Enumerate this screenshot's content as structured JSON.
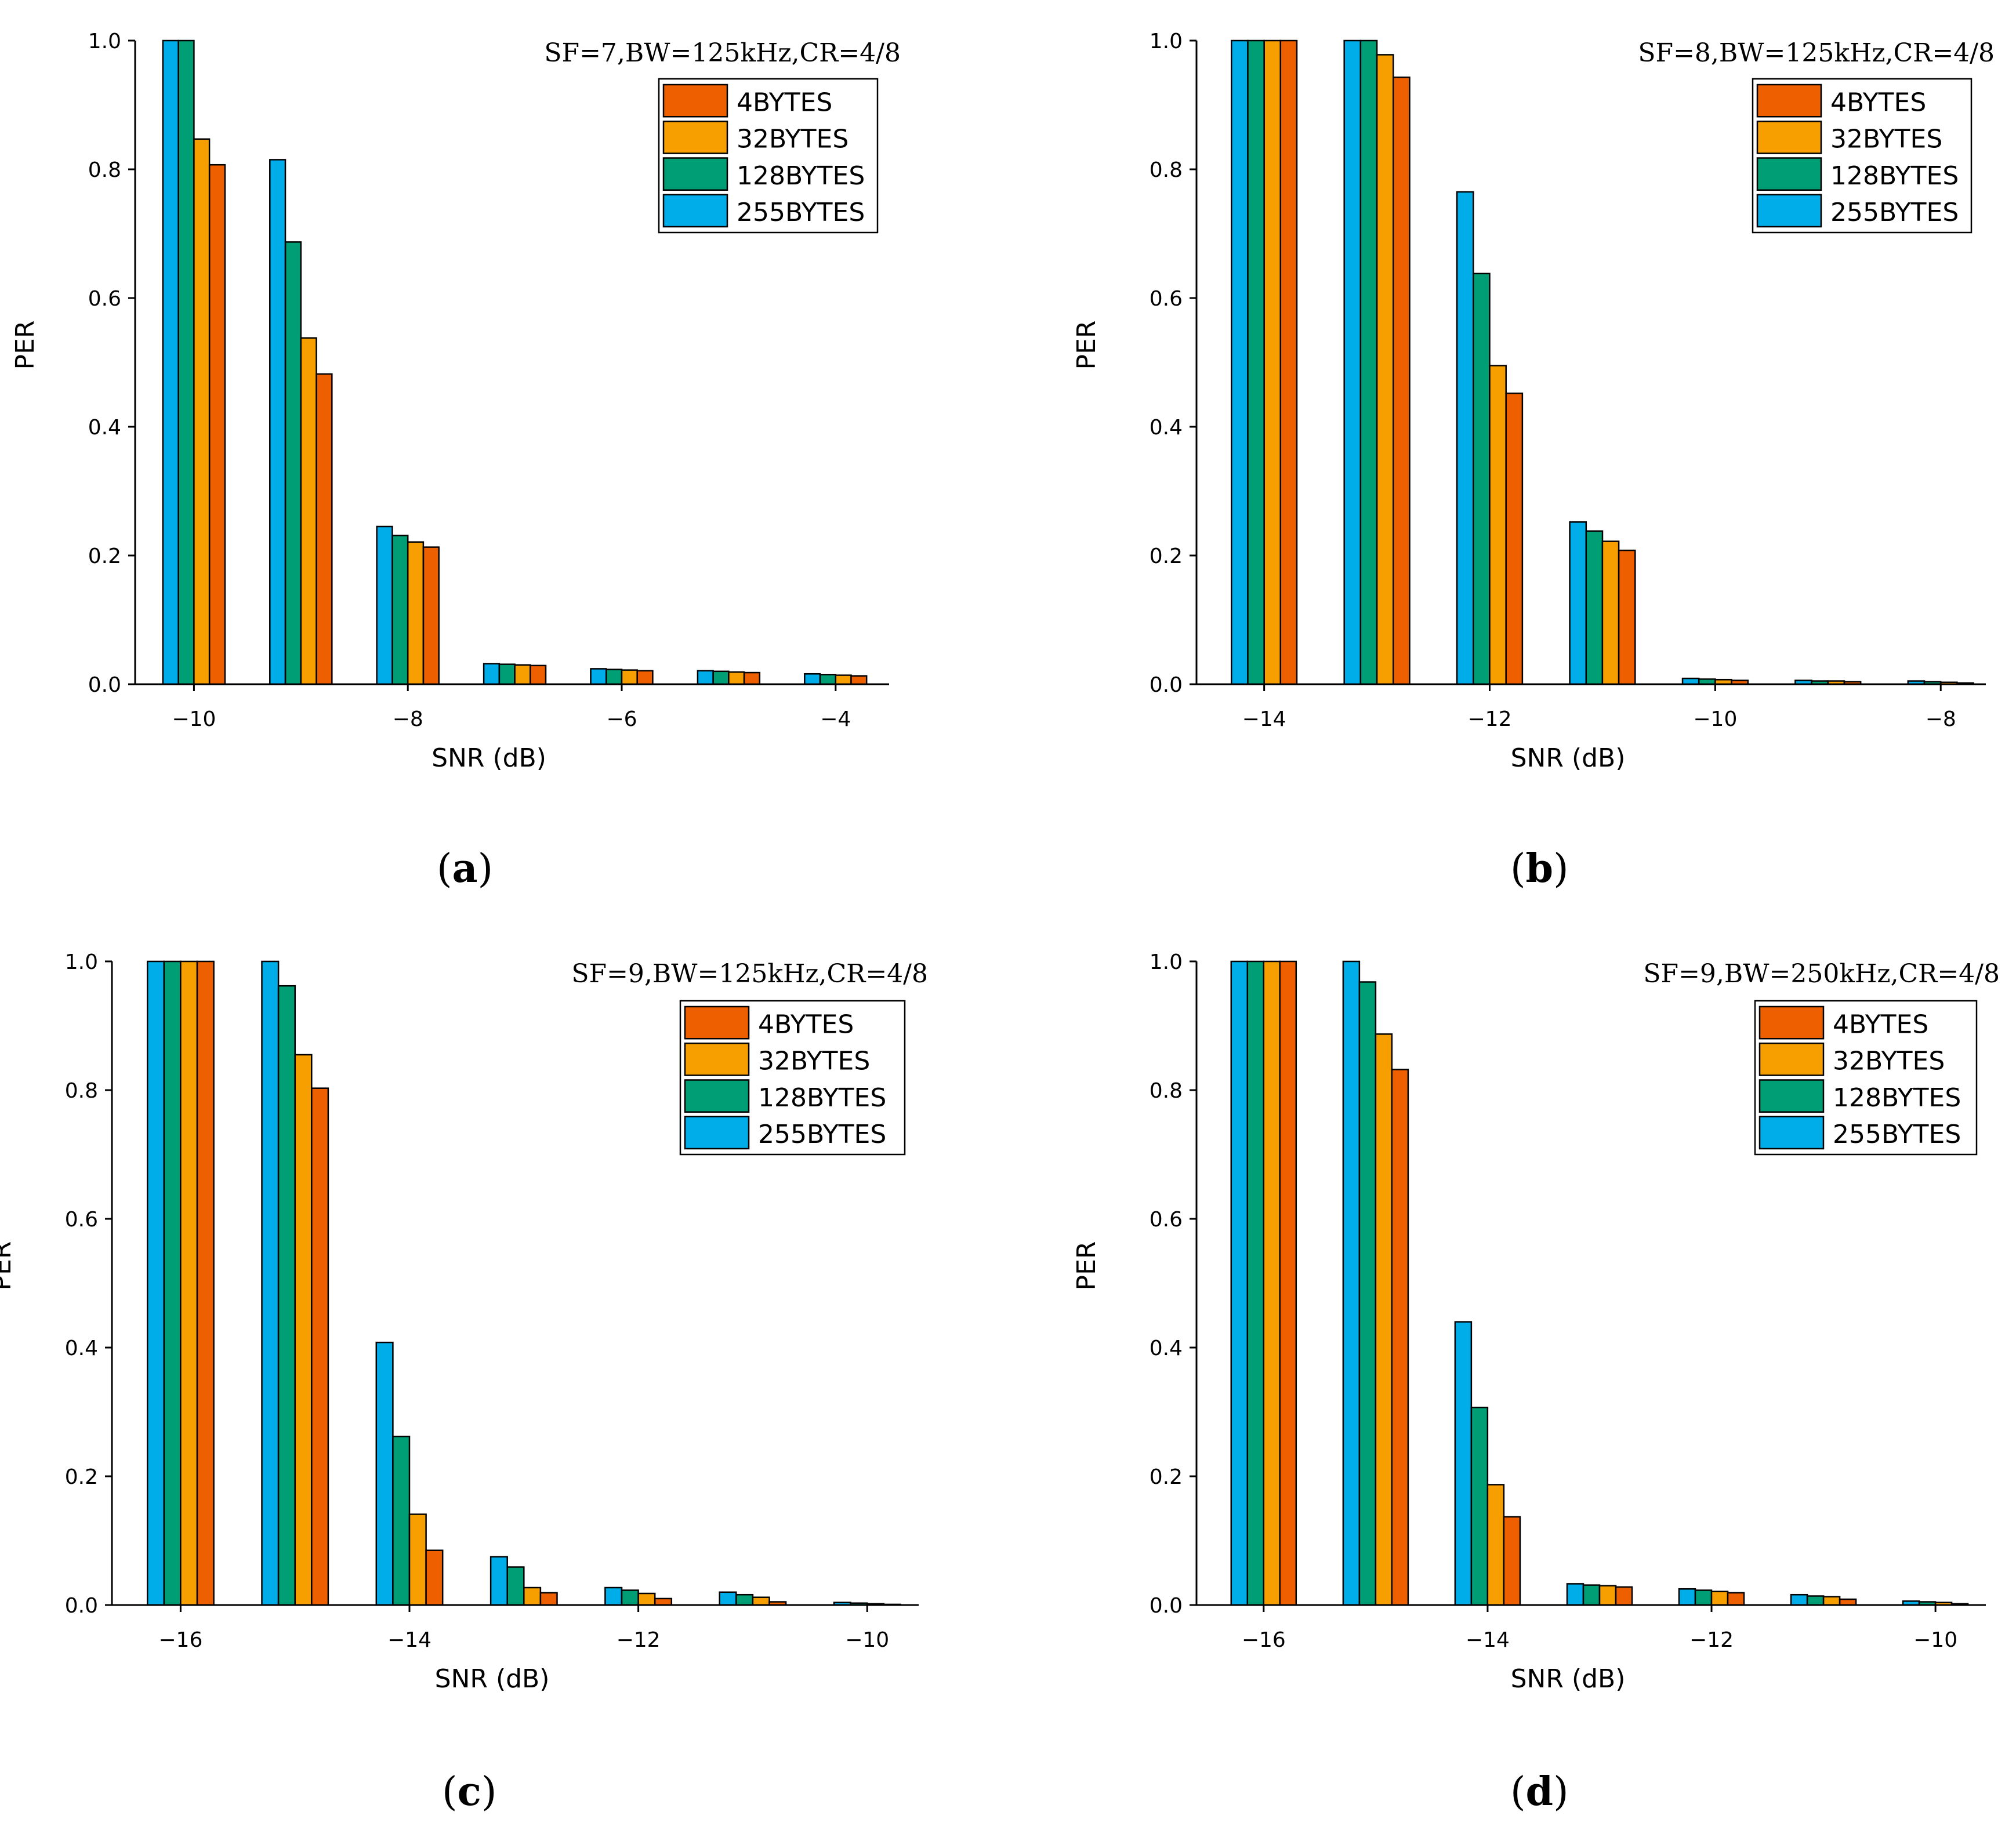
{
  "chart_data": [
    {
      "type": "bar",
      "panel": "a",
      "caption_open": "(",
      "caption_letter": "a",
      "caption_close": ")",
      "title": "SF=7,BW=125kHz,CR=4/8",
      "xlabel": "SNR (dB)",
      "ylabel": "PER",
      "ylim": [
        0,
        1.0
      ],
      "yticks": [
        "0.0",
        "0.2",
        "0.4",
        "0.6",
        "0.8",
        "1.0"
      ],
      "xticks": [
        "−10",
        "−8",
        "−6",
        "−4"
      ],
      "xtick_values": [
        -10,
        -8,
        -6,
        -4
      ],
      "categories": [
        -10,
        -9,
        -8,
        -7,
        -6,
        -5,
        -4
      ],
      "legend": [
        "4BYTES",
        "32BYTES",
        "128BYTES",
        "255BYTES"
      ],
      "series": [
        {
          "name": "255BYTES",
          "color": "#00ade9",
          "values": [
            1.0,
            0.815,
            0.245,
            0.032,
            0.024,
            0.021,
            0.016
          ]
        },
        {
          "name": "128BYTES",
          "color": "#009e74",
          "values": [
            1.0,
            0.687,
            0.231,
            0.031,
            0.023,
            0.02,
            0.015
          ]
        },
        {
          "name": "32BYTES",
          "color": "#f79f00",
          "values": [
            0.847,
            0.538,
            0.221,
            0.03,
            0.022,
            0.019,
            0.014
          ]
        },
        {
          "name": "4BYTES",
          "color": "#ee5f00",
          "values": [
            0.807,
            0.482,
            0.213,
            0.029,
            0.021,
            0.018,
            0.013
          ]
        }
      ]
    },
    {
      "type": "bar",
      "panel": "b",
      "caption_open": "(",
      "caption_letter": "b",
      "caption_close": ")",
      "title": "SF=8,BW=125kHz,CR=4/8",
      "xlabel": "SNR (dB)",
      "ylabel": "PER",
      "ylim": [
        0,
        1.0
      ],
      "yticks": [
        "0.0",
        "0.2",
        "0.4",
        "0.6",
        "0.8",
        "1.0"
      ],
      "xticks": [
        "−14",
        "−12",
        "−10",
        "−8"
      ],
      "xtick_values": [
        -14,
        -12,
        -10,
        -8
      ],
      "categories": [
        -14,
        -13,
        -12,
        -11,
        -10,
        -9,
        -8
      ],
      "legend": [
        "4BYTES",
        "32BYTES",
        "128BYTES",
        "255BYTES"
      ],
      "series": [
        {
          "name": "255BYTES",
          "color": "#00ade9",
          "values": [
            1.0,
            1.0,
            0.765,
            0.252,
            0.009,
            0.006,
            0.005
          ]
        },
        {
          "name": "128BYTES",
          "color": "#009e74",
          "values": [
            1.0,
            1.0,
            0.638,
            0.238,
            0.008,
            0.005,
            0.004
          ]
        },
        {
          "name": "32BYTES",
          "color": "#f79f00",
          "values": [
            1.0,
            0.978,
            0.495,
            0.222,
            0.007,
            0.005,
            0.003
          ]
        },
        {
          "name": "4BYTES",
          "color": "#ee5f00",
          "values": [
            1.0,
            0.943,
            0.452,
            0.208,
            0.006,
            0.004,
            0.002
          ]
        }
      ]
    },
    {
      "type": "bar",
      "panel": "c",
      "caption_open": "(",
      "caption_letter": "c",
      "caption_close": ")",
      "title": "SF=9,BW=125kHz,CR=4/8",
      "xlabel": "SNR (dB)",
      "ylabel": "PER",
      "ylim": [
        0,
        1.0
      ],
      "yticks": [
        "0.0",
        "0.2",
        "0.4",
        "0.6",
        "0.8",
        "1.0"
      ],
      "xticks": [
        "−16",
        "−14",
        "−12",
        "−10"
      ],
      "xtick_values": [
        -16,
        -14,
        -12,
        -10
      ],
      "categories": [
        -16,
        -15,
        -14,
        -13,
        -12,
        -11,
        -10
      ],
      "legend": [
        "4BYTES",
        "32BYTES",
        "128BYTES",
        "255BYTES"
      ],
      "series": [
        {
          "name": "255BYTES",
          "color": "#00ade9",
          "values": [
            1.0,
            1.0,
            0.408,
            0.075,
            0.027,
            0.02,
            0.004
          ]
        },
        {
          "name": "128BYTES",
          "color": "#009e74",
          "values": [
            1.0,
            0.962,
            0.262,
            0.059,
            0.023,
            0.016,
            0.003
          ]
        },
        {
          "name": "32BYTES",
          "color": "#f79f00",
          "values": [
            1.0,
            0.855,
            0.141,
            0.027,
            0.018,
            0.012,
            0.002
          ]
        },
        {
          "name": "4BYTES",
          "color": "#ee5f00",
          "values": [
            1.0,
            0.803,
            0.085,
            0.019,
            0.01,
            0.005,
            0.001
          ]
        }
      ]
    },
    {
      "type": "bar",
      "panel": "d",
      "caption_open": "(",
      "caption_letter": "d",
      "caption_close": ")",
      "title": "SF=9,BW=250kHz,CR=4/8",
      "xlabel": "SNR (dB)",
      "ylabel": "PER",
      "ylim": [
        0,
        1.0
      ],
      "yticks": [
        "0.0",
        "0.2",
        "0.4",
        "0.6",
        "0.8",
        "1.0"
      ],
      "xticks": [
        "−16",
        "−14",
        "−12",
        "−10"
      ],
      "xtick_values": [
        -16,
        -14,
        -12,
        -10
      ],
      "categories": [
        -16,
        -15,
        -14,
        -13,
        -12,
        -11,
        -10
      ],
      "legend": [
        "4BYTES",
        "32BYTES",
        "128BYTES",
        "255BYTES"
      ],
      "series": [
        {
          "name": "255BYTES",
          "color": "#00ade9",
          "values": [
            1.0,
            1.0,
            0.44,
            0.033,
            0.025,
            0.016,
            0.006
          ]
        },
        {
          "name": "128BYTES",
          "color": "#009e74",
          "values": [
            1.0,
            0.968,
            0.307,
            0.031,
            0.023,
            0.014,
            0.005
          ]
        },
        {
          "name": "32BYTES",
          "color": "#f79f00",
          "values": [
            1.0,
            0.887,
            0.187,
            0.03,
            0.021,
            0.013,
            0.004
          ]
        },
        {
          "name": "4BYTES",
          "color": "#ee5f00",
          "values": [
            1.0,
            0.832,
            0.137,
            0.028,
            0.019,
            0.009,
            0.002
          ]
        }
      ]
    }
  ]
}
